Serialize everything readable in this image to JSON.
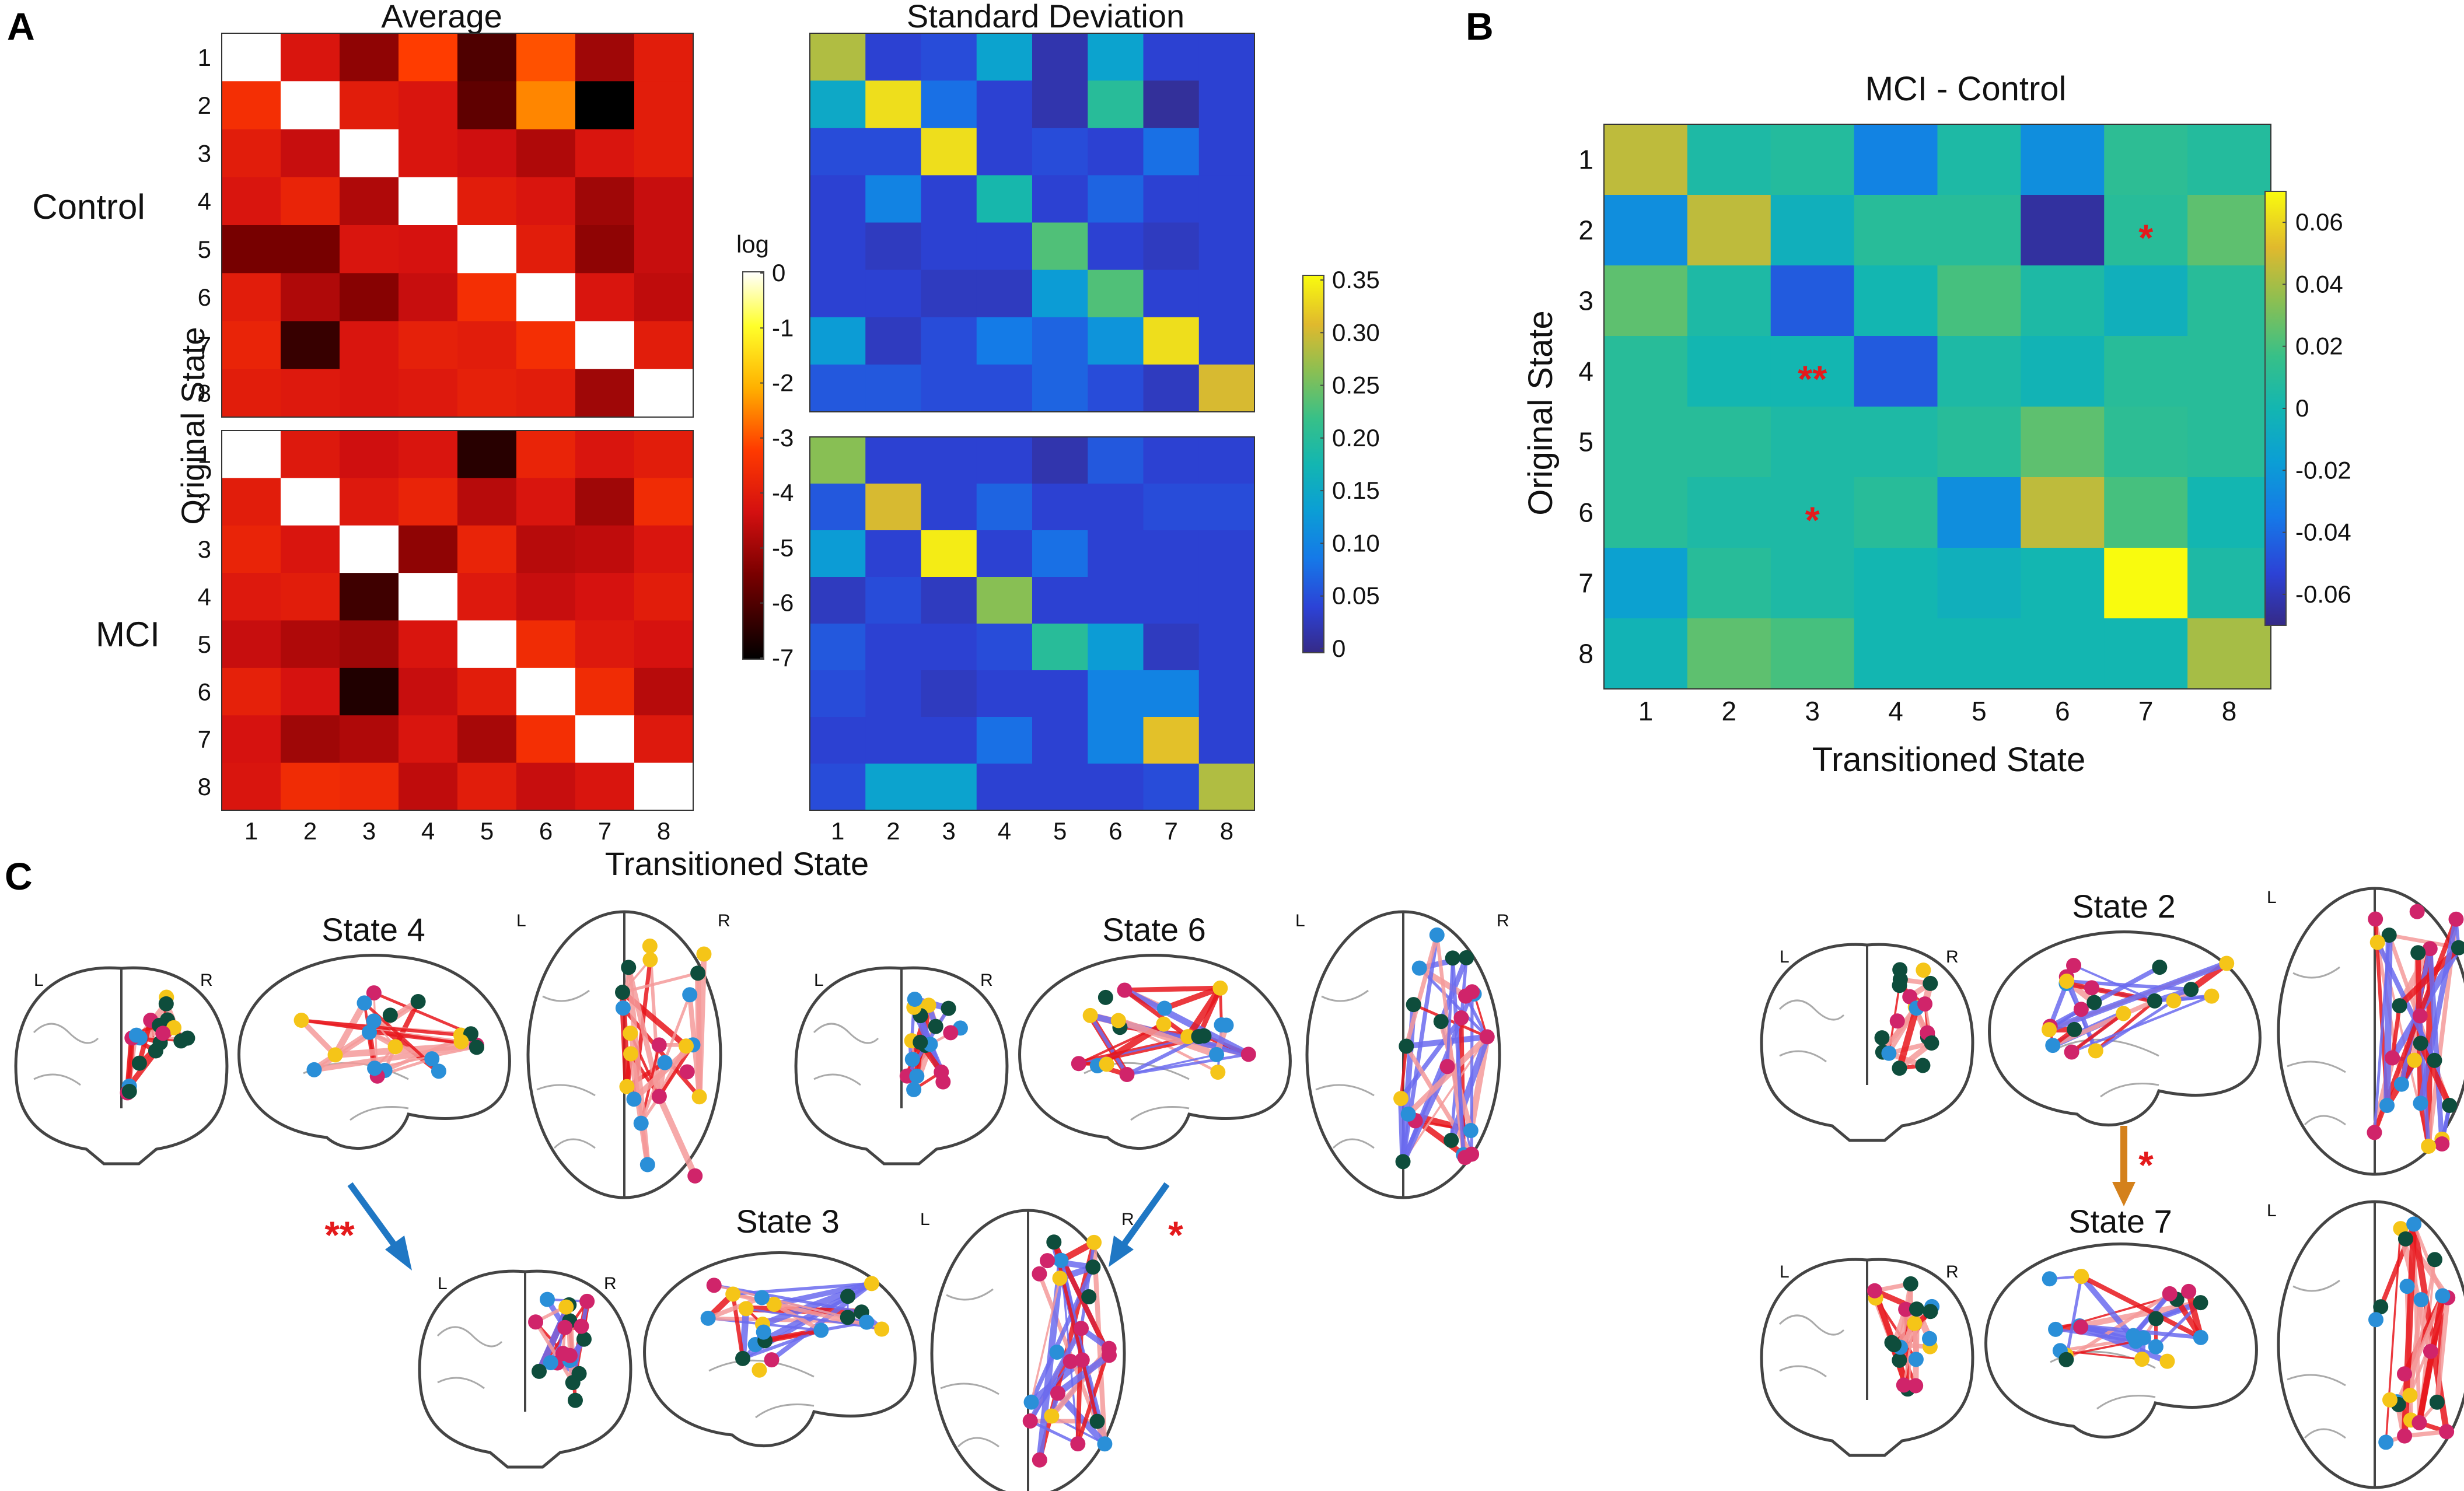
{
  "panel_labels": {
    "a": "A",
    "b": "B",
    "c": "C"
  },
  "colorbars": {
    "log": {
      "title": "log",
      "ticks": [
        "0",
        "-1",
        "-2",
        "-3",
        "-4",
        "-5",
        "-6",
        "-7"
      ]
    },
    "sd": {
      "ticks": [
        "0.35",
        "0.30",
        "0.25",
        "0.20",
        "0.15",
        "0.10",
        "0.05",
        "0"
      ]
    },
    "diff": {
      "ticks": [
        "0.06",
        "0.04",
        "0.02",
        "0",
        "-0.02",
        "-0.04",
        "-0.06"
      ]
    }
  },
  "chart_data": [
    {
      "id": "avg-control",
      "type": "heatmap",
      "title": "Average",
      "row_label": "Control",
      "ylabel": "Original State",
      "xlabel": "Transitioned State",
      "x_ticks": [
        "1",
        "2",
        "3",
        "4",
        "5",
        "6",
        "7",
        "8"
      ],
      "y_ticks": [
        "1",
        "2",
        "3",
        "4",
        "5",
        "6",
        "7",
        "8"
      ],
      "colorscale": "hot (log)",
      "zlim": [
        -7,
        0
      ],
      "values": [
        [
          0.0,
          -4.2,
          -5.2,
          -3.2,
          -6.0,
          -3.0,
          -5.0,
          -4.0
        ],
        [
          -3.5,
          0.0,
          -4.0,
          -4.2,
          -5.8,
          -2.5,
          -7.0,
          -4.0
        ],
        [
          -4.0,
          -4.5,
          0.0,
          -4.2,
          -4.4,
          -4.8,
          -4.2,
          -4.0
        ],
        [
          -4.2,
          -3.8,
          -4.8,
          0.0,
          -4.0,
          -4.2,
          -5.0,
          -4.5
        ],
        [
          -5.5,
          -5.5,
          -4.2,
          -4.3,
          0.0,
          -4.0,
          -5.2,
          -4.5
        ],
        [
          -4.0,
          -4.8,
          -5.3,
          -4.5,
          -3.5,
          0.0,
          -4.2,
          -4.6
        ],
        [
          -3.8,
          -6.3,
          -4.2,
          -3.9,
          -4.0,
          -3.5,
          0.0,
          -4.0
        ],
        [
          -4.0,
          -4.1,
          -4.2,
          -4.1,
          -3.9,
          -4.0,
          -5.0,
          0.0
        ]
      ]
    },
    {
      "id": "avg-mci",
      "type": "heatmap",
      "row_label": "MCI",
      "ylabel": "Original State",
      "xlabel": "Transitioned State",
      "x_ticks": [
        "1",
        "2",
        "3",
        "4",
        "5",
        "6",
        "7",
        "8"
      ],
      "y_ticks": [
        "1",
        "2",
        "3",
        "4",
        "5",
        "6",
        "7",
        "8"
      ],
      "colorscale": "hot (log)",
      "zlim": [
        -7,
        0
      ],
      "values": [
        [
          0.0,
          -4.1,
          -4.4,
          -4.2,
          -6.5,
          -3.8,
          -4.2,
          -4.0
        ],
        [
          -4.0,
          0.0,
          -4.1,
          -3.8,
          -4.7,
          -4.2,
          -5.0,
          -3.6
        ],
        [
          -3.8,
          -4.2,
          0.0,
          -5.2,
          -3.8,
          -4.7,
          -4.6,
          -4.2
        ],
        [
          -4.1,
          -4.0,
          -6.2,
          0.0,
          -4.1,
          -4.5,
          -4.3,
          -4.0
        ],
        [
          -4.5,
          -4.8,
          -5.0,
          -4.2,
          0.0,
          -3.6,
          -4.1,
          -4.3
        ],
        [
          -3.9,
          -4.3,
          -6.6,
          -4.5,
          -4.0,
          0.0,
          -3.6,
          -4.7
        ],
        [
          -4.3,
          -5.0,
          -4.8,
          -4.2,
          -4.9,
          -3.5,
          0.0,
          -4.1
        ],
        [
          -4.2,
          -3.6,
          -3.7,
          -4.6,
          -4.0,
          -4.5,
          -4.2,
          0.0
        ]
      ]
    },
    {
      "id": "sd-control",
      "type": "heatmap",
      "title": "Standard Deviation",
      "x_ticks": [
        "1",
        "2",
        "3",
        "4",
        "5",
        "6",
        "7",
        "8"
      ],
      "colorscale": "parula",
      "zlim": [
        0,
        0.35
      ],
      "values": [
        [
          0.28,
          0.04,
          0.05,
          0.14,
          0.02,
          0.14,
          0.04,
          0.04
        ],
        [
          0.15,
          0.33,
          0.08,
          0.04,
          0.02,
          0.2,
          0.01,
          0.04
        ],
        [
          0.05,
          0.05,
          0.33,
          0.04,
          0.05,
          0.04,
          0.08,
          0.04
        ],
        [
          0.04,
          0.1,
          0.04,
          0.18,
          0.04,
          0.07,
          0.04,
          0.04
        ],
        [
          0.04,
          0.03,
          0.04,
          0.04,
          0.23,
          0.04,
          0.03,
          0.04
        ],
        [
          0.04,
          0.04,
          0.03,
          0.03,
          0.13,
          0.23,
          0.04,
          0.04
        ],
        [
          0.13,
          0.03,
          0.05,
          0.09,
          0.07,
          0.12,
          0.33,
          0.04
        ],
        [
          0.06,
          0.06,
          0.05,
          0.05,
          0.07,
          0.05,
          0.03,
          0.3
        ]
      ]
    },
    {
      "id": "sd-mci",
      "type": "heatmap",
      "x_ticks": [
        "1",
        "2",
        "3",
        "4",
        "5",
        "6",
        "7",
        "8"
      ],
      "colorscale": "parula",
      "zlim": [
        0,
        0.35
      ],
      "values": [
        [
          0.26,
          0.04,
          0.04,
          0.04,
          0.02,
          0.06,
          0.04,
          0.04
        ],
        [
          0.06,
          0.3,
          0.04,
          0.07,
          0.04,
          0.04,
          0.05,
          0.05
        ],
        [
          0.13,
          0.04,
          0.34,
          0.04,
          0.08,
          0.04,
          0.04,
          0.04
        ],
        [
          0.03,
          0.05,
          0.03,
          0.26,
          0.04,
          0.04,
          0.04,
          0.04
        ],
        [
          0.06,
          0.04,
          0.04,
          0.05,
          0.2,
          0.13,
          0.03,
          0.04
        ],
        [
          0.05,
          0.04,
          0.03,
          0.04,
          0.04,
          0.1,
          0.1,
          0.04
        ],
        [
          0.04,
          0.04,
          0.04,
          0.08,
          0.04,
          0.1,
          0.31,
          0.04
        ],
        [
          0.05,
          0.14,
          0.14,
          0.04,
          0.04,
          0.04,
          0.05,
          0.28
        ]
      ]
    },
    {
      "id": "mci-minus-control",
      "type": "heatmap",
      "title": "MCI - Control",
      "ylabel": "Original State",
      "xlabel": "Transitioned State",
      "x_ticks": [
        "1",
        "2",
        "3",
        "4",
        "5",
        "6",
        "7",
        "8"
      ],
      "y_ticks": [
        "1",
        "2",
        "3",
        "4",
        "5",
        "6",
        "7",
        "8"
      ],
      "colorscale": "parula",
      "zlim": [
        -0.07,
        0.07
      ],
      "values": [
        [
          0.045,
          0.005,
          0.008,
          -0.03,
          0.005,
          -0.025,
          0.012,
          0.008
        ],
        [
          -0.025,
          0.045,
          -0.005,
          0.01,
          0.01,
          -0.065,
          0.01,
          0.025
        ],
        [
          0.025,
          0.005,
          -0.045,
          0.0,
          0.02,
          0.005,
          -0.005,
          0.01
        ],
        [
          0.01,
          0.0,
          0.0,
          -0.045,
          0.005,
          -0.002,
          0.01,
          0.01
        ],
        [
          0.01,
          0.01,
          0.005,
          0.005,
          0.01,
          0.025,
          0.012,
          0.01
        ],
        [
          0.01,
          0.005,
          0.005,
          0.01,
          -0.025,
          0.045,
          0.02,
          0.0
        ],
        [
          -0.015,
          0.01,
          0.005,
          0.0,
          -0.005,
          0.0,
          0.07,
          0.005
        ],
        [
          -0.002,
          0.025,
          0.02,
          0.0,
          0.0,
          0.0,
          0.0,
          0.04
        ]
      ],
      "annotations": [
        {
          "row": 2,
          "col": 7,
          "text": "*"
        },
        {
          "row": 4,
          "col": 3,
          "text": "**"
        },
        {
          "row": 6,
          "col": 3,
          "text": "*"
        }
      ]
    }
  ],
  "panel_c": {
    "left_label": "L",
    "right_label": "R",
    "brains": [
      {
        "id": "state4",
        "title": "State 4"
      },
      {
        "id": "state6",
        "title": "State 6"
      },
      {
        "id": "state3",
        "title": "State 3"
      },
      {
        "id": "state2",
        "title": "State 2"
      },
      {
        "id": "state7",
        "title": "State 7"
      }
    ],
    "transitions": [
      {
        "from": "State 4",
        "to": "State 3",
        "significance": "**"
      },
      {
        "from": "State 6",
        "to": "State 3",
        "significance": "*"
      },
      {
        "from": "State 2",
        "to": "State 7",
        "significance": "*"
      }
    ]
  },
  "colors": {
    "star": "#e41a1c",
    "blue_arrow": "#1f77c4",
    "orange_arrow": "#d4811c",
    "node_green": "#0e4d3c",
    "node_yellow": "#f5c518",
    "node_blue": "#2a8fd8",
    "node_magenta": "#d0246a",
    "edge_red": "#e8161c",
    "edge_pink": "#f59a9a",
    "edge_blue": "#6b6bef"
  }
}
